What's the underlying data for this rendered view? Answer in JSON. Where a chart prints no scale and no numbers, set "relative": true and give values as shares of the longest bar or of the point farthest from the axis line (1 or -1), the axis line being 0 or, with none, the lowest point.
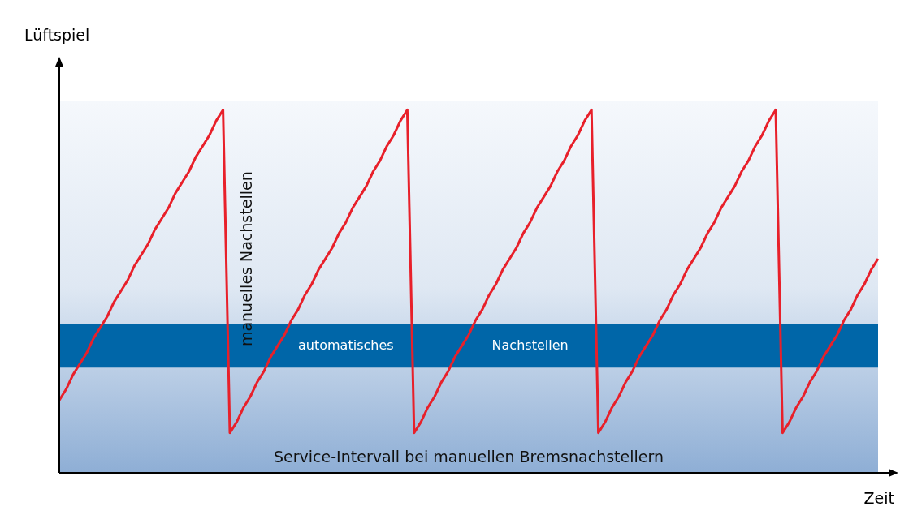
{
  "chart_data": {
    "type": "line",
    "relative": true,
    "xlabel": "Zeit",
    "ylabel": "Lüftspiel",
    "tick_labels": false,
    "marker": "none",
    "legend": false,
    "categories": [
      null,
      null,
      null,
      null,
      null,
      null,
      null,
      null,
      null,
      null,
      null,
      null,
      null,
      null,
      null,
      null,
      null,
      null,
      null,
      null,
      null,
      null,
      null,
      null,
      null,
      null,
      null,
      null,
      null,
      null,
      null,
      null,
      null,
      null,
      null,
      null,
      null,
      null,
      null,
      null,
      null,
      null,
      null,
      null,
      null,
      null,
      null,
      null,
      null,
      null,
      null,
      null,
      null,
      null,
      null,
      null,
      null,
      null,
      null,
      null,
      null,
      null,
      null,
      null,
      null,
      null,
      null,
      null,
      null,
      null,
      null,
      null,
      null,
      null,
      null,
      null,
      null,
      null,
      null,
      null,
      null,
      null,
      null,
      null,
      null,
      null,
      null,
      null,
      null,
      null,
      null,
      null,
      null,
      null,
      null,
      null,
      null,
      null,
      null,
      null,
      null,
      null,
      null,
      null,
      null,
      null,
      null,
      null,
      null,
      null,
      null,
      null,
      null,
      null,
      null,
      null,
      null,
      null,
      null,
      null,
      null
    ],
    "series": [
      {
        "color": "#e8202a",
        "values": [
          0.2,
          0.23,
          0.27,
          0.3,
          0.33,
          0.37,
          0.4,
          0.43,
          0.47,
          0.5,
          0.53,
          0.57,
          0.6,
          0.63,
          0.67,
          0.7,
          0.73,
          0.77,
          0.8,
          0.83,
          0.87,
          0.9,
          0.93,
          0.97,
          1,
          0.11,
          0.14,
          0.18,
          0.21,
          0.25,
          0.28,
          0.32,
          0.35,
          0.38,
          0.42,
          0.45,
          0.49,
          0.52,
          0.56,
          0.59,
          0.62,
          0.66,
          0.69,
          0.73,
          0.76,
          0.79,
          0.83,
          0.86,
          0.9,
          0.93,
          0.97,
          1,
          0.11,
          0.14,
          0.18,
          0.21,
          0.25,
          0.28,
          0.32,
          0.35,
          0.38,
          0.42,
          0.45,
          0.49,
          0.52,
          0.56,
          0.59,
          0.62,
          0.66,
          0.69,
          0.73,
          0.76,
          0.79,
          0.83,
          0.86,
          0.9,
          0.93,
          0.97,
          1,
          0.11,
          0.14,
          0.18,
          0.21,
          0.25,
          0.28,
          0.32,
          0.35,
          0.38,
          0.42,
          0.45,
          0.49,
          0.52,
          0.56,
          0.59,
          0.62,
          0.66,
          0.69,
          0.73,
          0.76,
          0.79,
          0.83,
          0.86,
          0.9,
          0.93,
          0.97,
          1,
          0.11,
          0.14,
          0.18,
          0.21,
          0.25,
          0.28,
          0.32,
          0.35,
          0.38,
          0.42,
          0.45,
          0.49,
          0.52,
          0.56,
          0.59
        ]
      }
    ],
    "bands": [
      {
        "axis": "y",
        "from": 0.29,
        "to": 0.41,
        "label": "automatisches Nachstellen",
        "color": "#0066a8"
      }
    ],
    "annotations": [
      "manuelles Nachstellen",
      "Service-Intervall bei manuellen Bremsnachstellern"
    ]
  }
}
